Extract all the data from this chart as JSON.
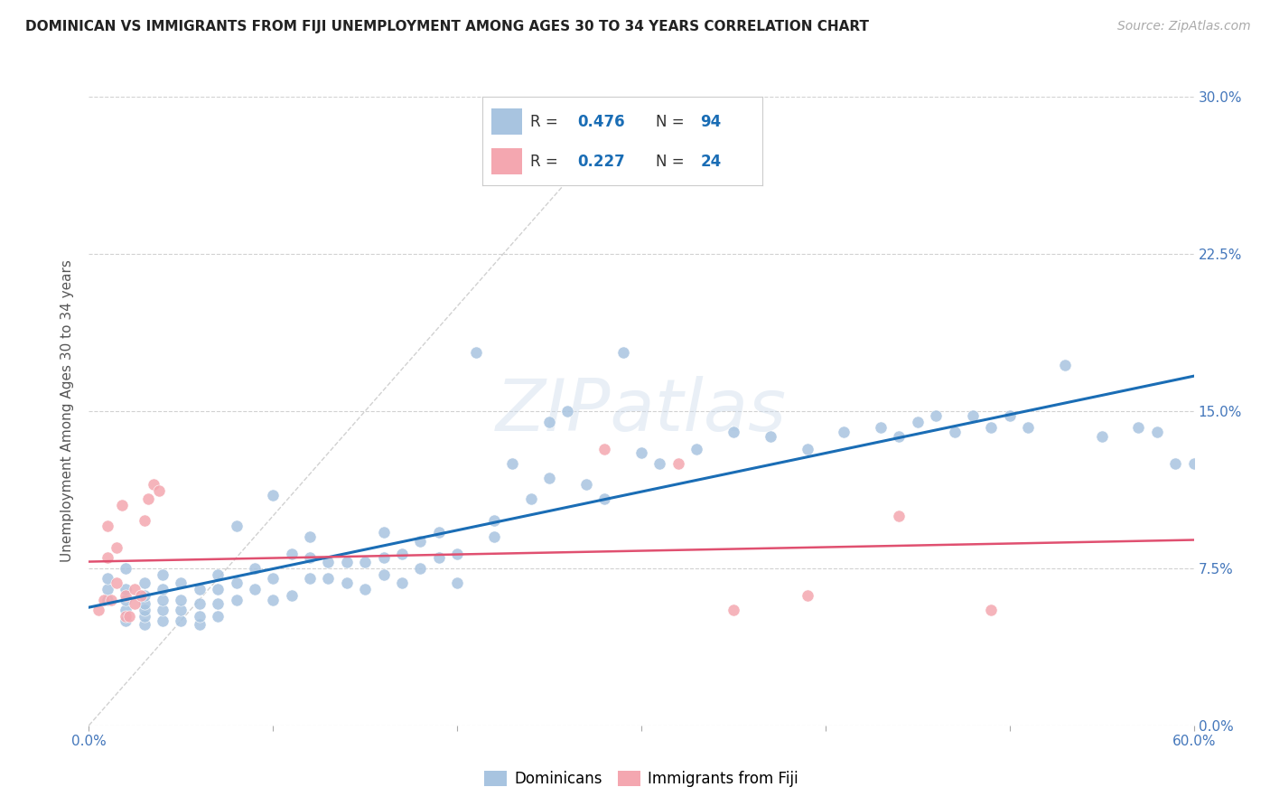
{
  "title": "DOMINICAN VS IMMIGRANTS FROM FIJI UNEMPLOYMENT AMONG AGES 30 TO 34 YEARS CORRELATION CHART",
  "source": "Source: ZipAtlas.com",
  "ylabel": "Unemployment Among Ages 30 to 34 years",
  "xlim": [
    0.0,
    0.6
  ],
  "ylim": [
    0.0,
    0.3
  ],
  "xticks": [
    0.0,
    0.1,
    0.2,
    0.3,
    0.4,
    0.5,
    0.6
  ],
  "yticks": [
    0.0,
    0.075,
    0.15,
    0.225,
    0.3
  ],
  "xtick_labels": [
    "0.0%",
    "",
    "",
    "",
    "",
    "",
    "60.0%"
  ],
  "ytick_labels_right": [
    "0.0%",
    "7.5%",
    "15.0%",
    "22.5%",
    "30.0%"
  ],
  "dominican_color": "#a8c4e0",
  "fiji_color": "#f4a7b0",
  "trend_dominican_color": "#1a6db5",
  "trend_fiji_color": "#e05070",
  "diagonal_color": "#cccccc",
  "R_dominican": 0.476,
  "N_dominican": 94,
  "R_fiji": 0.227,
  "N_fiji": 24,
  "legend_labels": [
    "Dominicans",
    "Immigrants from Fiji"
  ],
  "background_color": "#ffffff",
  "watermark": "ZIPatlas",
  "dominican_x": [
    0.01,
    0.01,
    0.01,
    0.02,
    0.02,
    0.02,
    0.02,
    0.02,
    0.03,
    0.03,
    0.03,
    0.03,
    0.03,
    0.03,
    0.04,
    0.04,
    0.04,
    0.04,
    0.04,
    0.05,
    0.05,
    0.05,
    0.05,
    0.06,
    0.06,
    0.06,
    0.06,
    0.07,
    0.07,
    0.07,
    0.07,
    0.08,
    0.08,
    0.08,
    0.09,
    0.09,
    0.1,
    0.1,
    0.1,
    0.11,
    0.11,
    0.12,
    0.12,
    0.12,
    0.13,
    0.13,
    0.14,
    0.14,
    0.15,
    0.15,
    0.16,
    0.16,
    0.16,
    0.17,
    0.17,
    0.18,
    0.18,
    0.19,
    0.19,
    0.2,
    0.2,
    0.21,
    0.22,
    0.22,
    0.23,
    0.24,
    0.25,
    0.25,
    0.26,
    0.27,
    0.28,
    0.29,
    0.3,
    0.31,
    0.33,
    0.35,
    0.37,
    0.39,
    0.41,
    0.43,
    0.44,
    0.45,
    0.46,
    0.47,
    0.48,
    0.49,
    0.5,
    0.51,
    0.53,
    0.55,
    0.57,
    0.58,
    0.59,
    0.6
  ],
  "dominican_y": [
    0.06,
    0.065,
    0.07,
    0.05,
    0.055,
    0.06,
    0.065,
    0.075,
    0.048,
    0.052,
    0.055,
    0.058,
    0.062,
    0.068,
    0.05,
    0.055,
    0.06,
    0.065,
    0.072,
    0.05,
    0.055,
    0.06,
    0.068,
    0.048,
    0.052,
    0.058,
    0.065,
    0.052,
    0.058,
    0.065,
    0.072,
    0.06,
    0.068,
    0.095,
    0.065,
    0.075,
    0.06,
    0.07,
    0.11,
    0.062,
    0.082,
    0.07,
    0.08,
    0.09,
    0.07,
    0.078,
    0.068,
    0.078,
    0.065,
    0.078,
    0.072,
    0.08,
    0.092,
    0.068,
    0.082,
    0.075,
    0.088,
    0.08,
    0.092,
    0.068,
    0.082,
    0.178,
    0.09,
    0.098,
    0.125,
    0.108,
    0.118,
    0.145,
    0.15,
    0.115,
    0.108,
    0.178,
    0.13,
    0.125,
    0.132,
    0.14,
    0.138,
    0.132,
    0.14,
    0.142,
    0.138,
    0.145,
    0.148,
    0.14,
    0.148,
    0.142,
    0.148,
    0.142,
    0.172,
    0.138,
    0.142,
    0.14,
    0.125,
    0.125
  ],
  "fiji_x": [
    0.005,
    0.008,
    0.01,
    0.01,
    0.012,
    0.015,
    0.015,
    0.018,
    0.02,
    0.02,
    0.022,
    0.025,
    0.025,
    0.028,
    0.03,
    0.032,
    0.035,
    0.038,
    0.28,
    0.32,
    0.35,
    0.39,
    0.44,
    0.49
  ],
  "fiji_y": [
    0.055,
    0.06,
    0.08,
    0.095,
    0.06,
    0.068,
    0.085,
    0.105,
    0.052,
    0.062,
    0.052,
    0.058,
    0.065,
    0.062,
    0.098,
    0.108,
    0.115,
    0.112,
    0.132,
    0.125,
    0.055,
    0.062,
    0.1,
    0.055
  ]
}
